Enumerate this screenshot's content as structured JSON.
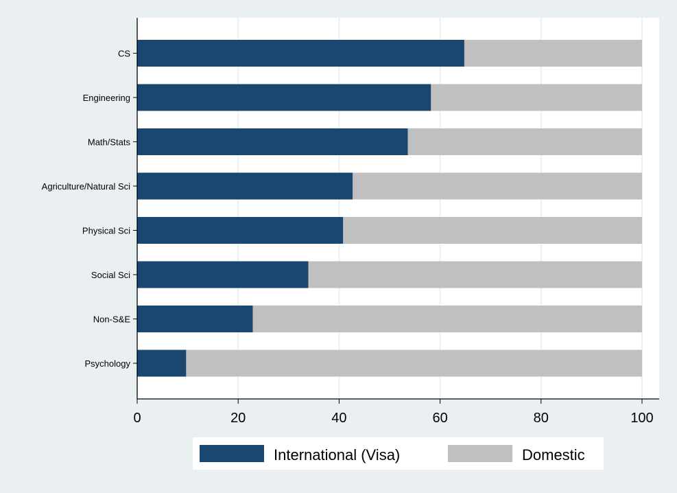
{
  "chart_data": {
    "type": "bar",
    "orientation": "horizontal",
    "stacked": true,
    "categories": [
      "CS",
      "Engineering",
      "Math/Stats",
      "Agriculture/Natural Sci",
      "Physical Sci",
      "Social Sci",
      "Non-S&E",
      "Psychology"
    ],
    "series": [
      {
        "name": "International (Visa)",
        "color": "#1a476f",
        "values": [
          64.8,
          58.2,
          53.6,
          42.7,
          40.8,
          33.9,
          22.9,
          9.7
        ]
      },
      {
        "name": "Domestic",
        "color": "#c0c0c0",
        "values": [
          35.2,
          41.8,
          46.4,
          57.3,
          59.2,
          66.1,
          77.1,
          90.3
        ]
      }
    ],
    "xlim": [
      0,
      100
    ],
    "xticks": [
      "0",
      "20",
      "40",
      "60",
      "80",
      "100"
    ],
    "grid": true,
    "legend_position": "bottom",
    "title": "",
    "xlabel": "",
    "ylabel": ""
  },
  "colors": {
    "background": "#eaf0f2",
    "plot_background": "#ffffff",
    "gridline": "#eaf0f2",
    "axis": "#000000"
  }
}
